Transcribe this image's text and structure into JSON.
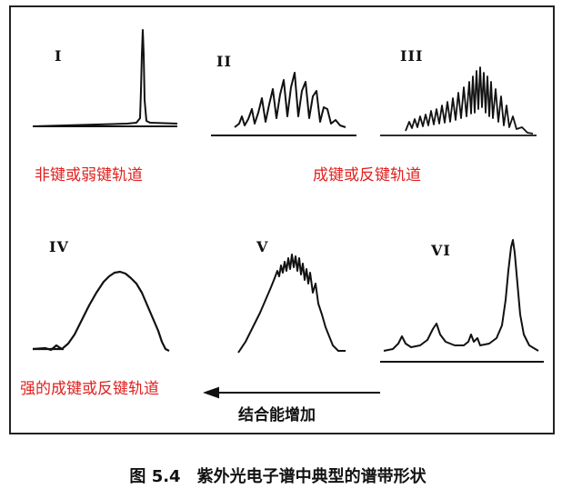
{
  "panels": [
    {
      "id": "I",
      "label": "I"
    },
    {
      "id": "II",
      "label": "II"
    },
    {
      "id": "III",
      "label": "III"
    },
    {
      "id": "IV",
      "label": "IV"
    },
    {
      "id": "V",
      "label": "V"
    },
    {
      "id": "VI",
      "label": "VI"
    }
  ],
  "annotations": {
    "nonbonding": "非键或弱键轨道",
    "bonding": "成键或反键轨道",
    "strong_bonding": "强的成键或反键轨道"
  },
  "axis": {
    "energy_label": "结合能增加"
  },
  "caption": {
    "number": "图 5.4",
    "text": "紫外光电子谱中典型的谱带形状"
  },
  "colors": {
    "annotation": "#e0211f",
    "ink": "#111111"
  }
}
